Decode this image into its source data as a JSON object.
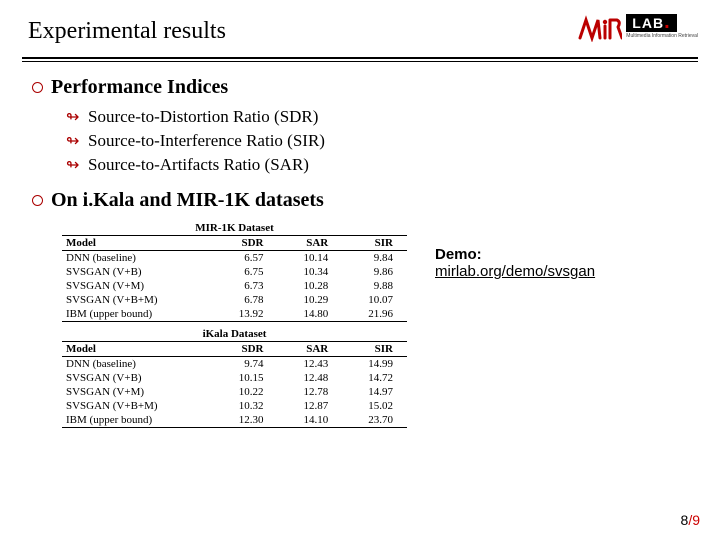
{
  "header": {
    "title": "Experimental results",
    "logo": {
      "mir": "MiR",
      "lab": "LAB",
      "tagline": "Multimedia\nInformation\nRetrieval"
    }
  },
  "bullets": {
    "b1": {
      "text": "Performance Indices"
    },
    "b1_subs": [
      "Source-to-Distortion Ratio (SDR)",
      "Source-to-Interference Ratio (SIR)",
      "Source-to-Artifacts Ratio (SAR)"
    ],
    "b2": {
      "text": "On i.Kala  and MIR-1K datasets"
    }
  },
  "tables": {
    "t1": {
      "caption": "MIR-1K Dataset",
      "cols": [
        "Model",
        "SDR",
        "SAR",
        "SIR"
      ],
      "rows": [
        [
          "DNN (baseline)",
          "6.57",
          "10.14",
          "9.84"
        ],
        [
          "SVSGAN (V+B)",
          "6.75",
          "10.34",
          "9.86"
        ],
        [
          "SVSGAN (V+M)",
          "6.73",
          "10.28",
          "9.88"
        ],
        [
          "SVSGAN (V+B+M)",
          "6.78",
          "10.29",
          "10.07"
        ],
        [
          "IBM (upper bound)",
          "13.92",
          "14.80",
          "21.96"
        ]
      ]
    },
    "t2": {
      "caption": "iKala Dataset",
      "cols": [
        "Model",
        "SDR",
        "SAR",
        "SIR"
      ],
      "rows": [
        [
          "DNN (baseline)",
          "9.74",
          "12.43",
          "14.99"
        ],
        [
          "SVSGAN (V+B)",
          "10.15",
          "12.48",
          "14.72"
        ],
        [
          "SVSGAN (V+M)",
          "10.22",
          "12.78",
          "14.97"
        ],
        [
          "SVSGAN (V+B+M)",
          "10.32",
          "12.87",
          "15.02"
        ],
        [
          "IBM (upper bound)",
          "12.30",
          "14.10",
          "23.70"
        ]
      ]
    }
  },
  "demo": {
    "label": "Demo:",
    "link": "mirlab.org/demo/svsgan"
  },
  "pager": {
    "current": "8",
    "total": "9"
  },
  "colors": {
    "accent": "#a00000",
    "red": "#c00000"
  }
}
